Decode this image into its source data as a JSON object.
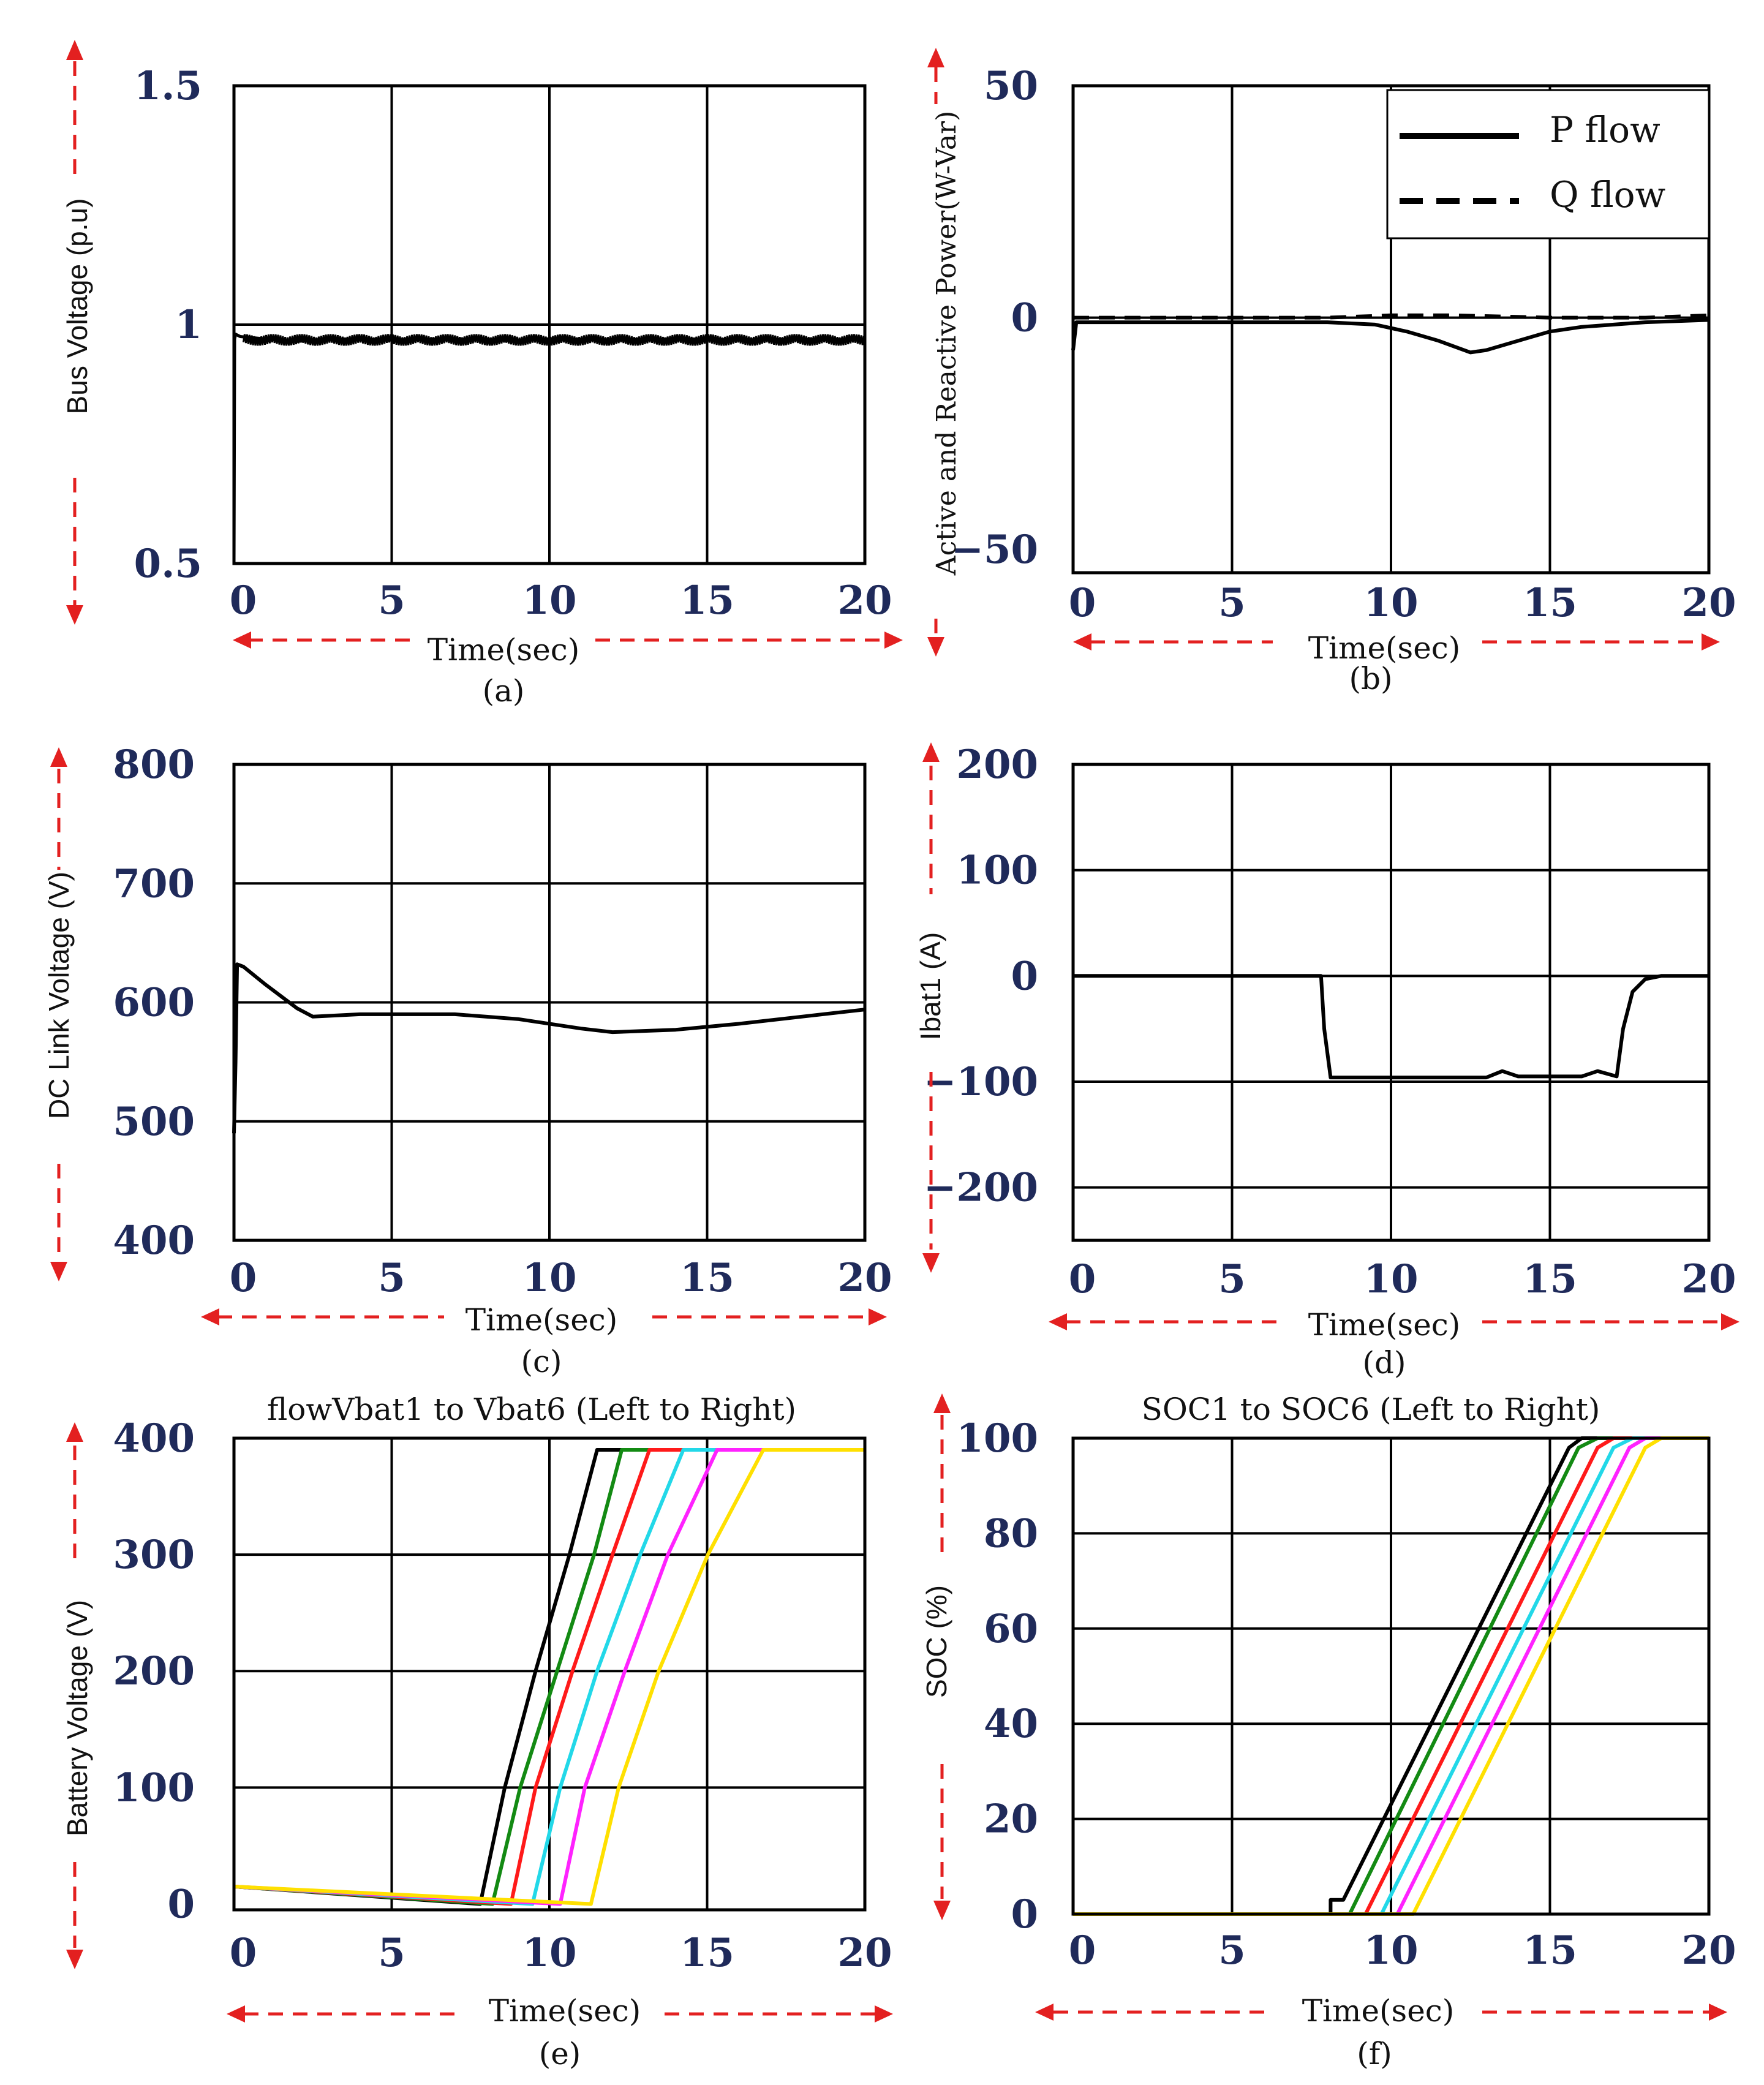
{
  "chart_data": [
    {
      "id": "a",
      "type": "line",
      "caption": "(a)",
      "title": "",
      "xlabel": "Time(sec)",
      "ylabel": "Bus Voltage (p.u)",
      "xlim": [
        0,
        20
      ],
      "ylim": [
        0.5,
        1.5
      ],
      "xticks": [
        "0",
        "5",
        "10",
        "15",
        "20"
      ],
      "yticks": [
        {
          "v": 0.5,
          "label": "0.5"
        },
        {
          "v": 1.0,
          "label": "1"
        },
        {
          "v": 1.5,
          "label": "1.5"
        }
      ],
      "grid_y": [
        1.0
      ],
      "series": [
        {
          "name": "Bus voltage",
          "color": "#000000",
          "width": 5,
          "dash": "",
          "x": [
            0,
            0.02,
            0.05,
            0.2,
            1,
            2,
            3,
            5,
            7,
            9,
            10,
            12,
            14,
            16,
            18,
            20
          ],
          "y": [
            0.5,
            0.97,
            0.98,
            0.975,
            0.97,
            0.965,
            0.97,
            0.968,
            0.97,
            0.967,
            0.97,
            0.968,
            0.97,
            0.968,
            0.969,
            0.968
          ]
        }
      ],
      "noise_band": {
        "x": [
          0.3,
          20
        ],
        "half_width": 0.012
      }
    },
    {
      "id": "b",
      "type": "line",
      "caption": "(b)",
      "title": "",
      "xlabel": "Time(sec)",
      "ylabel": "Active and Reactive Power(W-Var)",
      "xlim": [
        0,
        20
      ],
      "ylim": [
        -55,
        50
      ],
      "xticks": [
        "0",
        "5",
        "10",
        "15",
        "20"
      ],
      "yticks": [
        {
          "v": -50,
          "label": "−50"
        },
        {
          "v": 0,
          "label": "0"
        },
        {
          "v": 50,
          "label": "50"
        }
      ],
      "grid_y": [
        0
      ],
      "legend": {
        "position": "top-right",
        "entries": [
          {
            "label": "P flow",
            "dash": ""
          },
          {
            "label": "Q flow",
            "dash": "26 16"
          }
        ]
      },
      "series": [
        {
          "name": "P flow",
          "color": "#000000",
          "width": 6,
          "dash": "",
          "x": [
            0,
            0.1,
            2,
            5,
            8,
            9.5,
            10.5,
            11.5,
            12.5,
            13,
            14,
            15,
            16,
            18,
            20
          ],
          "y": [
            -7,
            -1,
            -1,
            -1,
            -1,
            -1.5,
            -3,
            -5,
            -7.5,
            -7,
            -5,
            -3,
            -2,
            -1,
            -0.5
          ]
        },
        {
          "name": "Q flow",
          "color": "#000000",
          "width": 6,
          "dash": "26 16",
          "x": [
            0,
            2,
            5,
            8,
            10,
            12,
            15,
            18,
            20
          ],
          "y": [
            0,
            0,
            0,
            0,
            0.5,
            0.5,
            0,
            0,
            0.5
          ]
        }
      ]
    },
    {
      "id": "c",
      "type": "line",
      "caption": "(c)",
      "title": "",
      "xlabel": "Time(sec)",
      "ylabel": "DC Link Voltage (V)",
      "xlim": [
        0,
        20
      ],
      "ylim": [
        400,
        800
      ],
      "xticks": [
        "0",
        "5",
        "10",
        "15",
        "20"
      ],
      "yticks": [
        {
          "v": 400,
          "label": "400"
        },
        {
          "v": 500,
          "label": "500"
        },
        {
          "v": 600,
          "label": "600"
        },
        {
          "v": 700,
          "label": "700"
        },
        {
          "v": 800,
          "label": "800"
        }
      ],
      "grid_y": [
        500,
        600,
        700
      ],
      "series": [
        {
          "name": "DC link voltage",
          "color": "#000000",
          "width": 6,
          "dash": "",
          "x": [
            0,
            0.05,
            0.1,
            0.3,
            1,
            2,
            2.5,
            4,
            7,
            9,
            11,
            12,
            13,
            14,
            16,
            18,
            20
          ],
          "y": [
            490,
            550,
            632,
            630,
            615,
            595,
            588,
            590,
            590,
            586,
            578,
            575,
            576,
            577,
            582,
            588,
            594
          ]
        }
      ]
    },
    {
      "id": "d",
      "type": "line",
      "caption": "(d)",
      "title": "",
      "xlabel": "Time(sec)",
      "ylabel": "Ibat1 (A)",
      "xlim": [
        0,
        20
      ],
      "ylim": [
        -250,
        200
      ],
      "xticks": [
        "0",
        "5",
        "10",
        "15",
        "20"
      ],
      "yticks": [
        {
          "v": -200,
          "label": "−200"
        },
        {
          "v": -100,
          "label": "−100"
        },
        {
          "v": 0,
          "label": "0"
        },
        {
          "v": 100,
          "label": "100"
        },
        {
          "v": 200,
          "label": "200"
        }
      ],
      "grid_y": [
        -200,
        -100,
        0,
        100
      ],
      "series": [
        {
          "name": "Ibat1",
          "color": "#000000",
          "width": 6,
          "dash": "",
          "x": [
            0,
            7.8,
            7.9,
            8.1,
            10,
            13,
            13.5,
            14,
            16,
            16.5,
            17.1,
            17.3,
            17.6,
            18,
            18.5,
            20
          ],
          "y": [
            0,
            0,
            -50,
            -96,
            -96,
            -96,
            -90,
            -95,
            -95,
            -90,
            -95,
            -50,
            -15,
            -3,
            0,
            0
          ]
        }
      ]
    },
    {
      "id": "e",
      "type": "line",
      "caption": "(e)",
      "title": "flowVbat1 to Vbat6 (Left to Right)",
      "xlabel": "Time(sec)",
      "ylabel": "Battery Voltage (V)",
      "xlim": [
        0,
        20.5
      ],
      "ylim": [
        -5,
        400
      ],
      "xticks": [
        "0",
        "5",
        "10",
        "15",
        "20"
      ],
      "yticks": [
        {
          "v": 0,
          "label": "0"
        },
        {
          "v": 100,
          "label": "100"
        },
        {
          "v": 200,
          "label": "200"
        },
        {
          "v": 300,
          "label": "300"
        },
        {
          "v": 400,
          "label": "400"
        }
      ],
      "grid_y": [
        100,
        200,
        300,
        400
      ],
      "series": [
        {
          "name": "Vbat1",
          "color": "#000000",
          "width": 6,
          "dash": "",
          "x": [
            0,
            8.0,
            8.8,
            9.8,
            10.9,
            11.8,
            20.5
          ],
          "y": [
            15,
            0,
            100,
            200,
            300,
            390,
            390
          ]
        },
        {
          "name": "Vbat2",
          "color": "#138a13",
          "width": 6,
          "dash": "",
          "x": [
            0,
            8.4,
            9.3,
            10.5,
            11.7,
            12.6,
            20.5
          ],
          "y": [
            15,
            0,
            100,
            200,
            300,
            390,
            390
          ]
        },
        {
          "name": "Vbat3",
          "color": "#ff1a1a",
          "width": 6,
          "dash": "",
          "x": [
            0,
            9.0,
            9.8,
            11.0,
            12.3,
            13.5,
            20.5
          ],
          "y": [
            15,
            0,
            100,
            200,
            300,
            390,
            390
          ]
        },
        {
          "name": "Vbat4",
          "color": "#22d8e8",
          "width": 6,
          "dash": "",
          "x": [
            0,
            9.7,
            10.6,
            11.8,
            13.2,
            14.6,
            20.5
          ],
          "y": [
            15,
            0,
            100,
            200,
            300,
            390,
            390
          ]
        },
        {
          "name": "Vbat5",
          "color": "#ff22ff",
          "width": 6,
          "dash": "",
          "x": [
            0,
            10.6,
            11.4,
            12.7,
            14.1,
            15.7,
            20.5
          ],
          "y": [
            15,
            0,
            100,
            200,
            300,
            390,
            390
          ]
        },
        {
          "name": "Vbat6",
          "color": "#ffe000",
          "width": 6,
          "dash": "",
          "x": [
            0,
            11.6,
            12.5,
            13.8,
            15.4,
            17.2,
            20.5
          ],
          "y": [
            15,
            0,
            100,
            200,
            300,
            390,
            390
          ]
        }
      ]
    },
    {
      "id": "f",
      "type": "line",
      "caption": "(f)",
      "title": "SOC1 to SOC6 (Left to Right)",
      "xlabel": "Time(sec)",
      "ylabel": "SOC (%)",
      "xlim": [
        0,
        20
      ],
      "ylim": [
        0,
        100
      ],
      "xticks": [
        "0",
        "5",
        "10",
        "15",
        "20"
      ],
      "yticks": [
        {
          "v": 0,
          "label": "0"
        },
        {
          "v": 20,
          "label": "20"
        },
        {
          "v": 40,
          "label": "40"
        },
        {
          "v": 60,
          "label": "60"
        },
        {
          "v": 80,
          "label": "80"
        },
        {
          "v": 100,
          "label": "100"
        }
      ],
      "grid_y": [
        20,
        40,
        60,
        80
      ],
      "series": [
        {
          "name": "SOC1",
          "color": "#000000",
          "width": 6,
          "dash": "",
          "x": [
            0,
            8.1,
            8.1,
            8.5,
            15.6,
            16.0,
            20
          ],
          "y": [
            0,
            0,
            3,
            3,
            98,
            100,
            100
          ]
        },
        {
          "name": "SOC2",
          "color": "#138a13",
          "width": 6,
          "dash": "",
          "x": [
            0,
            8.7,
            15.9,
            16.5,
            20
          ],
          "y": [
            0,
            0,
            98,
            100,
            100
          ]
        },
        {
          "name": "SOC3",
          "color": "#ff1a1a",
          "width": 6,
          "dash": "",
          "x": [
            0,
            9.2,
            16.5,
            17.0,
            20
          ],
          "y": [
            0,
            0,
            98,
            100,
            100
          ]
        },
        {
          "name": "SOC4",
          "color": "#22d8e8",
          "width": 6,
          "dash": "",
          "x": [
            0,
            9.7,
            17.0,
            17.6,
            20
          ],
          "y": [
            0,
            0,
            98,
            100,
            100
          ]
        },
        {
          "name": "SOC5",
          "color": "#ff22ff",
          "width": 6,
          "dash": "",
          "x": [
            0,
            10.2,
            17.5,
            18.0,
            20
          ],
          "y": [
            0,
            0,
            98,
            100,
            100
          ]
        },
        {
          "name": "SOC6",
          "color": "#ffe000",
          "width": 6,
          "dash": "",
          "x": [
            0,
            10.7,
            18.0,
            18.5,
            20
          ],
          "y": [
            0,
            0,
            98,
            100,
            100
          ]
        }
      ]
    }
  ]
}
